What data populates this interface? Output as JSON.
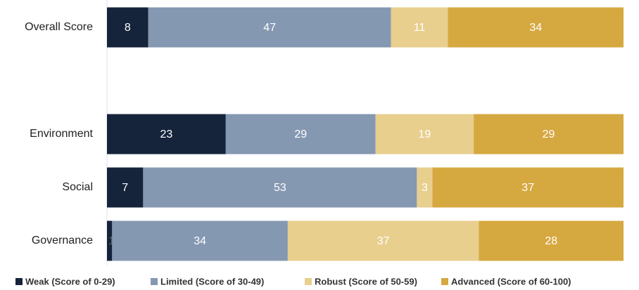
{
  "chart_data": {
    "type": "stacked-bar-horizontal",
    "categories": [
      "Overall Score",
      null,
      "Environment",
      "Social",
      "Governance"
    ],
    "series": [
      {
        "name": "Weak (Score of 0-29)",
        "color": "#15243b",
        "values": [
          8,
          null,
          23,
          7,
          1
        ]
      },
      {
        "name": "Limited (Score of 30-49)",
        "color": "#8598b2",
        "values": [
          47,
          null,
          29,
          53,
          34
        ]
      },
      {
        "name": "Robust (Score of 50-59)",
        "color": "#e8cf8e",
        "values": [
          11,
          null,
          19,
          3,
          37
        ]
      },
      {
        "name": "Advanced (Score of 60-100)",
        "color": "#d6a840",
        "values": [
          34,
          null,
          29,
          37,
          28
        ]
      }
    ],
    "xlim": [
      0,
      100
    ],
    "legend": "bottom"
  }
}
